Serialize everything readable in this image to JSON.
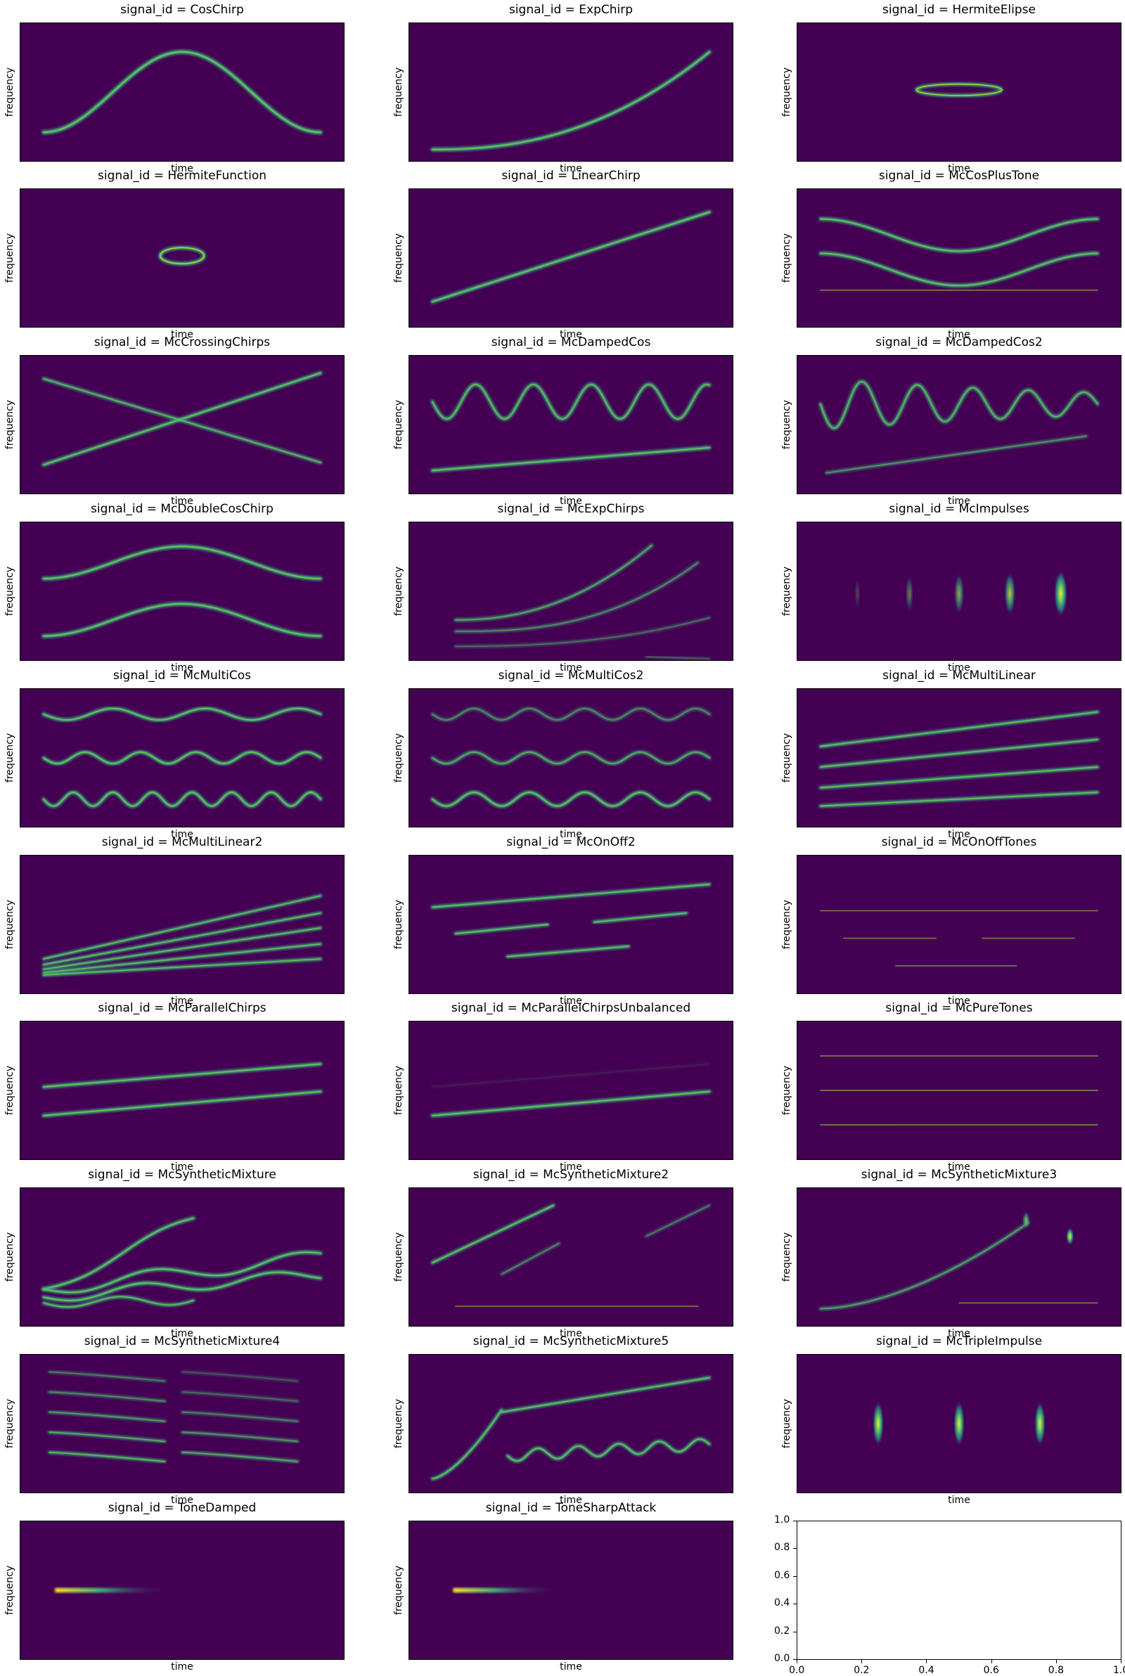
{
  "chart_data": {
    "type": "heatmap",
    "layout": {
      "rows": 10,
      "cols": 3
    },
    "xlabel": "time",
    "ylabel": "frequency",
    "colormap": "viridis",
    "background_color": "#440154",
    "panels": [
      {
        "title": "signal_id = CosChirp"
      },
      {
        "title": "signal_id = ExpChirp"
      },
      {
        "title": "signal_id = HermiteElipse"
      },
      {
        "title": "signal_id = HermiteFunction"
      },
      {
        "title": "signal_id = LinearChirp"
      },
      {
        "title": "signal_id = McCosPlusTone"
      },
      {
        "title": "signal_id = McCrossingChirps"
      },
      {
        "title": "signal_id = McDampedCos"
      },
      {
        "title": "signal_id = McDampedCos2"
      },
      {
        "title": "signal_id = McDoubleCosChirp"
      },
      {
        "title": "signal_id = McExpChirps"
      },
      {
        "title": "signal_id = McImpulses"
      },
      {
        "title": "signal_id = McMultiCos"
      },
      {
        "title": "signal_id = McMultiCos2"
      },
      {
        "title": "signal_id = McMultiLinear"
      },
      {
        "title": "signal_id = McMultiLinear2"
      },
      {
        "title": "signal_id = McOnOff2"
      },
      {
        "title": "signal_id = McOnOffTones"
      },
      {
        "title": "signal_id = McParallelChirps"
      },
      {
        "title": "signal_id = McParallelChirpsUnbalanced"
      },
      {
        "title": "signal_id = McPureTones"
      },
      {
        "title": "signal_id = McSyntheticMixture"
      },
      {
        "title": "signal_id = McSyntheticMixture2"
      },
      {
        "title": "signal_id = McSyntheticMixture3"
      },
      {
        "title": "signal_id = McSyntheticMixture4"
      },
      {
        "title": "signal_id = McSyntheticMixture5"
      },
      {
        "title": "signal_id = McTripleImpulse"
      },
      {
        "title": "signal_id = ToneDamped"
      },
      {
        "title": "signal_id = ToneSharpAttack"
      }
    ],
    "empty_axes": {
      "xlim": [
        0,
        1
      ],
      "ylim": [
        0,
        1
      ],
      "xticks": [
        "0.0",
        "0.2",
        "0.4",
        "0.6",
        "0.8",
        "1.0"
      ],
      "yticks": [
        "0.0",
        "0.2",
        "0.4",
        "0.6",
        "0.8",
        "1.0"
      ]
    }
  }
}
